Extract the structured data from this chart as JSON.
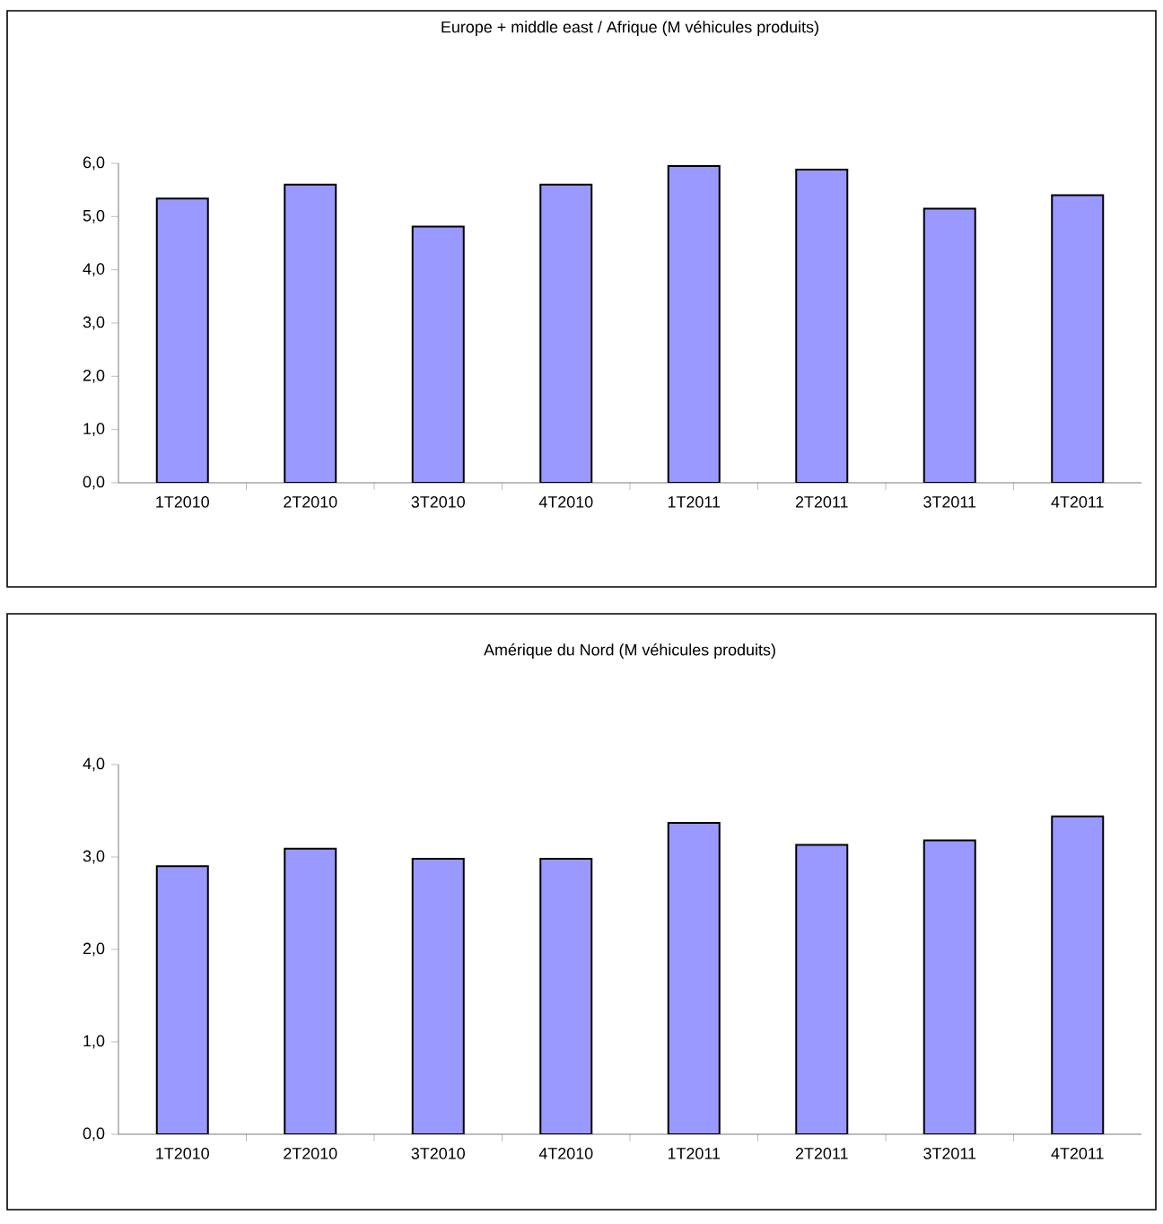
{
  "chart_data": [
    {
      "type": "bar",
      "title": "Europe + middle east / Afrique (M véhicules produits)",
      "categories": [
        "1T2010",
        "2T2010",
        "3T2010",
        "4T2010",
        "1T2011",
        "2T2011",
        "3T2011",
        "4T2011"
      ],
      "values": [
        5.34,
        5.6,
        4.81,
        5.6,
        5.95,
        5.88,
        5.15,
        5.4
      ],
      "color": "#9999ff",
      "ylim": [
        0,
        6
      ],
      "yticks": [
        {
          "value": 0,
          "label": "0,0"
        },
        {
          "value": 1,
          "label": "1,0"
        },
        {
          "value": 2,
          "label": "2,0"
        },
        {
          "value": 3,
          "label": "3,0"
        },
        {
          "value": 4,
          "label": "4,0"
        },
        {
          "value": 5,
          "label": "5,0"
        },
        {
          "value": 6,
          "label": "6,0"
        }
      ],
      "grid": false
    },
    {
      "type": "bar",
      "title": "Amérique du Nord (M véhicules produits)",
      "categories": [
        "1T2010",
        "2T2010",
        "3T2010",
        "4T2010",
        "1T2011",
        "2T2011",
        "3T2011",
        "4T2011"
      ],
      "values": [
        2.9,
        3.09,
        2.98,
        2.98,
        3.37,
        3.13,
        3.18,
        3.44
      ],
      "color": "#9999ff",
      "ylim": [
        0,
        4
      ],
      "yticks": [
        {
          "value": 0,
          "label": "0,0"
        },
        {
          "value": 1,
          "label": "1,0"
        },
        {
          "value": 2,
          "label": "2,0"
        },
        {
          "value": 3,
          "label": "3,0"
        },
        {
          "value": 4,
          "label": "4,0"
        }
      ],
      "grid": false
    }
  ]
}
